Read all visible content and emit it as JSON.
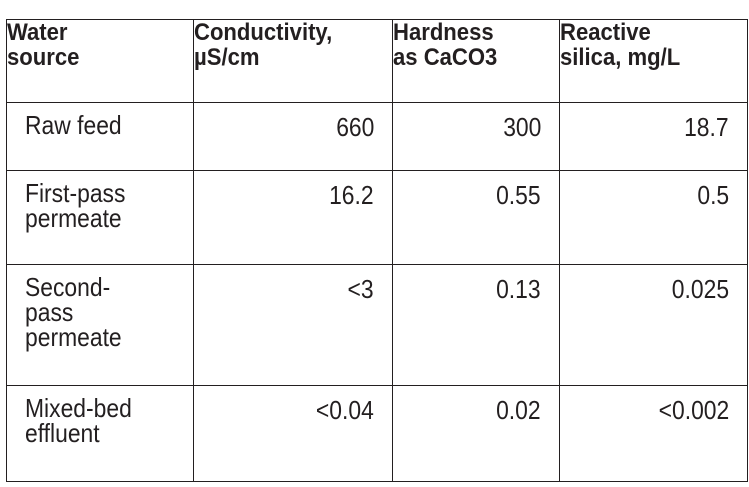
{
  "table": {
    "headers": [
      "Water\nsource",
      "Conductivity,\nµS/cm",
      "Hardness\nas CaCO3",
      "Reactive\nsilica, mg/L"
    ],
    "rows": [
      {
        "source": "Raw feed",
        "conductivity": "660",
        "hardness": "300",
        "silica": "18.7"
      },
      {
        "source": "First-pass\npermeate",
        "conductivity": "16.2",
        "hardness": "0.55",
        "silica": "0.5"
      },
      {
        "source": "Second-\npass\npermeate",
        "conductivity": "<3",
        "hardness": "0.13",
        "silica": "0.025"
      },
      {
        "source": "Mixed-bed\neffluent",
        "conductivity": "<0.04",
        "hardness": "0.02",
        "silica": "<0.002"
      }
    ]
  },
  "colors": {
    "text": "#231f20",
    "border": "#231f20",
    "background": "#ffffff"
  }
}
